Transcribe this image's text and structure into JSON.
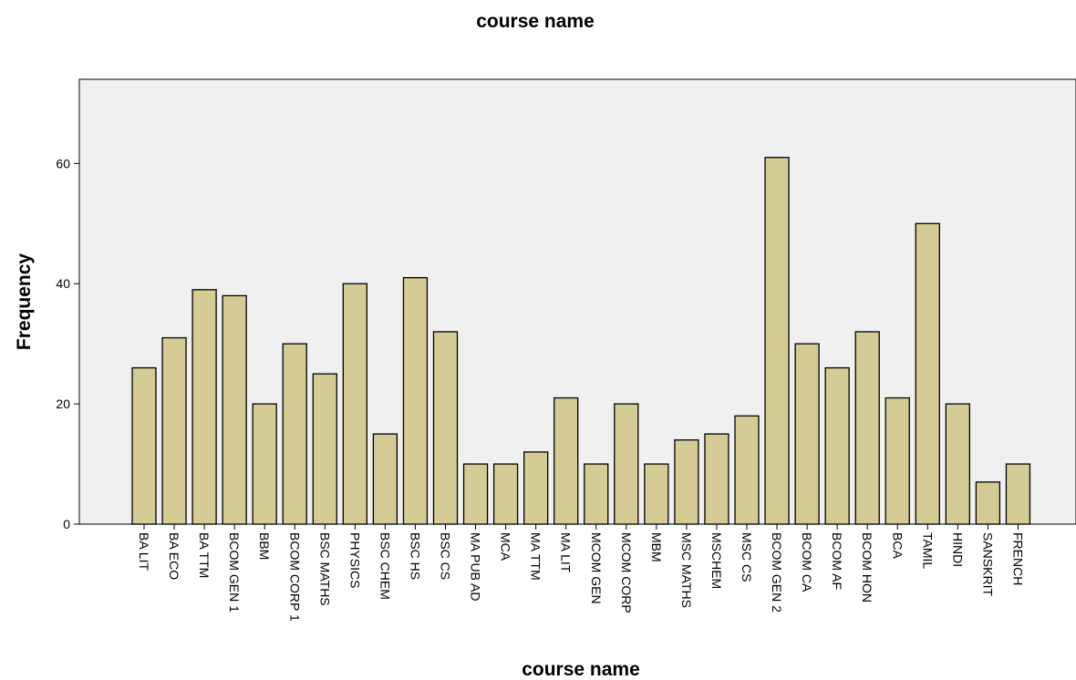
{
  "chart_data": {
    "type": "bar",
    "title": "course name",
    "xlabel": "course name",
    "ylabel": "Frequency",
    "categories": [
      "BA LIT",
      "BA ECO",
      "BA TTM",
      "BCOM GEN 1",
      "BBM",
      "BCOM CORP 1",
      "BSC MATHS",
      "PHYSICS",
      "BSC CHEM",
      "BSC HS",
      "BSC CS",
      "MA PUB AD",
      "MCA",
      "MA TTM",
      "MA LIT",
      "MCOM GEN",
      "MCOM CORP",
      "MBM",
      "MSC MATHS",
      "MSCHEM",
      "MSC CS",
      "BCOM GEN 2",
      "BCOM CA",
      "BCOM AF",
      "BCOM HON",
      "BCA",
      "TAMIL",
      "HINDI",
      "SANSKRIT",
      "FRENCH"
    ],
    "values": [
      26,
      31,
      39,
      38,
      20,
      30,
      25,
      40,
      15,
      41,
      32,
      10,
      10,
      12,
      21,
      10,
      20,
      10,
      14,
      15,
      18,
      61,
      30,
      26,
      32,
      21,
      50,
      20,
      7,
      10
    ],
    "ylim": [
      0,
      74
    ],
    "yticks": [
      0,
      20,
      40,
      60
    ],
    "grid": false,
    "legend": "none",
    "colors": {
      "bar_fill": "#d4cc94",
      "bar_stroke": "#000000",
      "plot_background": "#f0f0f0"
    }
  }
}
